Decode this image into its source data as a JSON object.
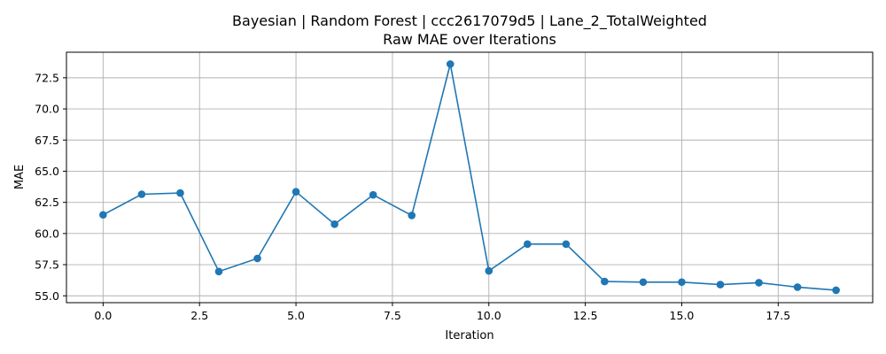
{
  "chart_data": {
    "type": "line",
    "title": "Bayesian | Random Forest | ccc2617079d5 | Lane_2_TotalWeighted",
    "subtitle": "Raw MAE over Iterations",
    "xlabel": "Iteration",
    "ylabel": "MAE",
    "xlim": [
      -0.95,
      19.95
    ],
    "ylim": [
      54.45,
      74.55
    ],
    "xticks": [
      0.0,
      2.5,
      5.0,
      7.5,
      10.0,
      12.5,
      15.0,
      17.5
    ],
    "xtick_labels": [
      "0.0",
      "2.5",
      "5.0",
      "7.5",
      "10.0",
      "12.5",
      "15.0",
      "17.5"
    ],
    "yticks": [
      55.0,
      57.5,
      60.0,
      62.5,
      65.0,
      67.5,
      70.0,
      72.5
    ],
    "ytick_labels": [
      "55.0",
      "57.5",
      "60.0",
      "62.5",
      "65.0",
      "67.5",
      "70.0",
      "72.5"
    ],
    "grid": true,
    "marker": "circle",
    "color": "#1f77b4",
    "series": [
      {
        "x": [
          0,
          1,
          2,
          3,
          4,
          5,
          6,
          7,
          8,
          9,
          10,
          11,
          12,
          13,
          14,
          15,
          16,
          17,
          18,
          19
        ],
        "y": [
          61.5,
          63.15,
          63.25,
          56.95,
          58.0,
          63.35,
          60.75,
          63.1,
          61.45,
          73.6,
          57.0,
          59.15,
          59.15,
          56.15,
          56.1,
          56.1,
          55.9,
          56.05,
          55.7,
          55.45
        ]
      }
    ]
  }
}
